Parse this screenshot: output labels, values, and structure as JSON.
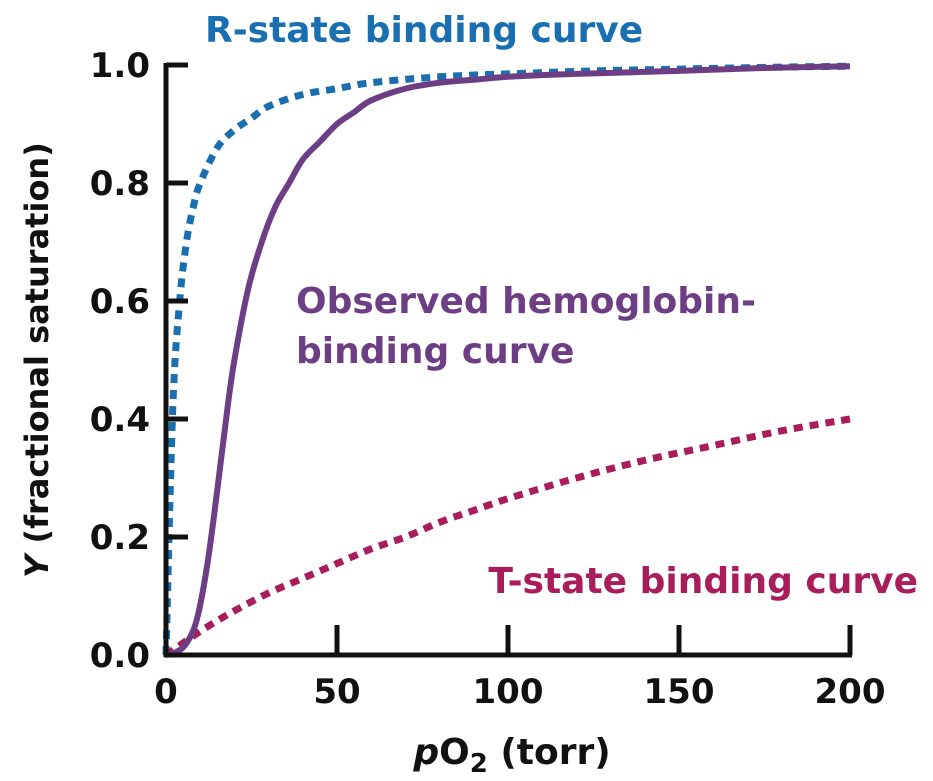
{
  "chart_data": {
    "type": "line",
    "title": "",
    "xlabel": {
      "italic": "p",
      "main": "O",
      "sub": "2",
      "rest": " (torr)"
    },
    "ylabel": {
      "italic": "Y",
      "rest": " (fractional saturation)"
    },
    "xlim": [
      0,
      200
    ],
    "ylim": [
      0,
      1
    ],
    "xticks": [
      "0",
      "50",
      "100",
      "150",
      "200"
    ],
    "yticks": [
      "0.0",
      "0.2",
      "0.4",
      "0.6",
      "0.8",
      "1.0"
    ],
    "grid": false,
    "series": [
      {
        "name": "R-state binding curve",
        "style": "dotted",
        "color": "#1a6fb0",
        "x": [
          0,
          2,
          4,
          6,
          8,
          10,
          15,
          20,
          25,
          30,
          40,
          50,
          60,
          80,
          100,
          125,
          150,
          175,
          200
        ],
        "y": [
          0,
          0.42,
          0.6,
          0.7,
          0.76,
          0.8,
          0.86,
          0.89,
          0.91,
          0.93,
          0.95,
          0.96,
          0.97,
          0.98,
          0.985,
          0.99,
          0.993,
          0.996,
          0.998
        ]
      },
      {
        "name": "Observed hemoglobin-binding curve",
        "label_lines": [
          "Observed hemoglobin-",
          "binding curve"
        ],
        "style": "solid",
        "color": "#6e3e85",
        "x": [
          0,
          3,
          6,
          9,
          12,
          15,
          18,
          20,
          24,
          28,
          32,
          36,
          40,
          45,
          50,
          55,
          60,
          70,
          80,
          90,
          100,
          120,
          150,
          175,
          200
        ],
        "y": [
          0,
          0.005,
          0.02,
          0.06,
          0.15,
          0.28,
          0.42,
          0.5,
          0.62,
          0.7,
          0.76,
          0.8,
          0.84,
          0.87,
          0.9,
          0.92,
          0.94,
          0.96,
          0.97,
          0.975,
          0.98,
          0.985,
          0.99,
          0.995,
          0.998
        ]
      },
      {
        "name": "T-state binding curve",
        "style": "dotted",
        "color": "#a81d5a",
        "x": [
          0,
          10,
          20,
          30,
          40,
          50,
          60,
          70,
          80,
          90,
          100,
          120,
          140,
          160,
          180,
          200
        ],
        "y": [
          0,
          0.04,
          0.075,
          0.105,
          0.13,
          0.155,
          0.18,
          0.2,
          0.225,
          0.245,
          0.265,
          0.3,
          0.33,
          0.355,
          0.38,
          0.4
        ]
      }
    ],
    "legend": "inline labels"
  }
}
